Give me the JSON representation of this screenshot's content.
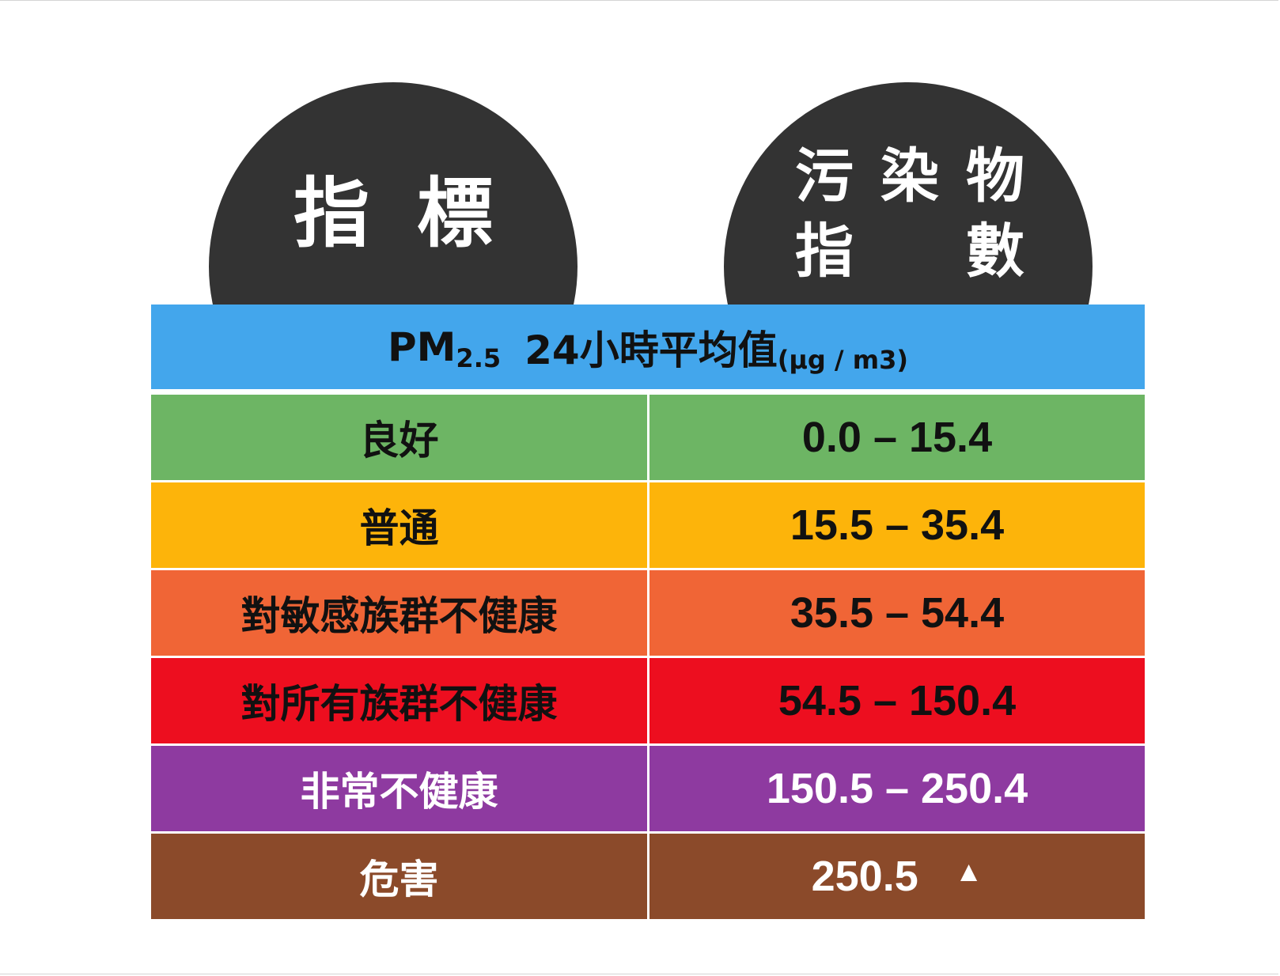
{
  "left_dome": {
    "text": "指標"
  },
  "right_dome": {
    "line1": [
      "污",
      "染",
      "物"
    ],
    "line2": [
      "指",
      "數"
    ]
  },
  "header": {
    "prefix": "PM",
    "subscript": "2.5",
    "main": "24小時平均值",
    "unit": "(μg / m3)"
  },
  "rows": [
    {
      "label": "良好",
      "range": "0.0 – 15.4",
      "color": "#6db564",
      "text_color": "#111111"
    },
    {
      "label": "普通",
      "range": "15.5 – 35.4",
      "color": "#fdb40a",
      "text_color": "#111111"
    },
    {
      "label": "對敏感族群不健康",
      "range": "35.5 – 54.4",
      "color": "#f06536",
      "text_color": "#111111"
    },
    {
      "label": "對所有族群不健康",
      "range": "54.5 – 150.4",
      "color": "#ed0e1f",
      "text_color": "#111111"
    },
    {
      "label": "非常不健康",
      "range": "150.5 – 250.4",
      "color": "#8e3aa0",
      "text_color": "#ffffff"
    },
    {
      "label": "危害",
      "range": "250.5",
      "arrow": "▲",
      "color": "#8b4a2a",
      "text_color": "#ffffff"
    }
  ]
}
